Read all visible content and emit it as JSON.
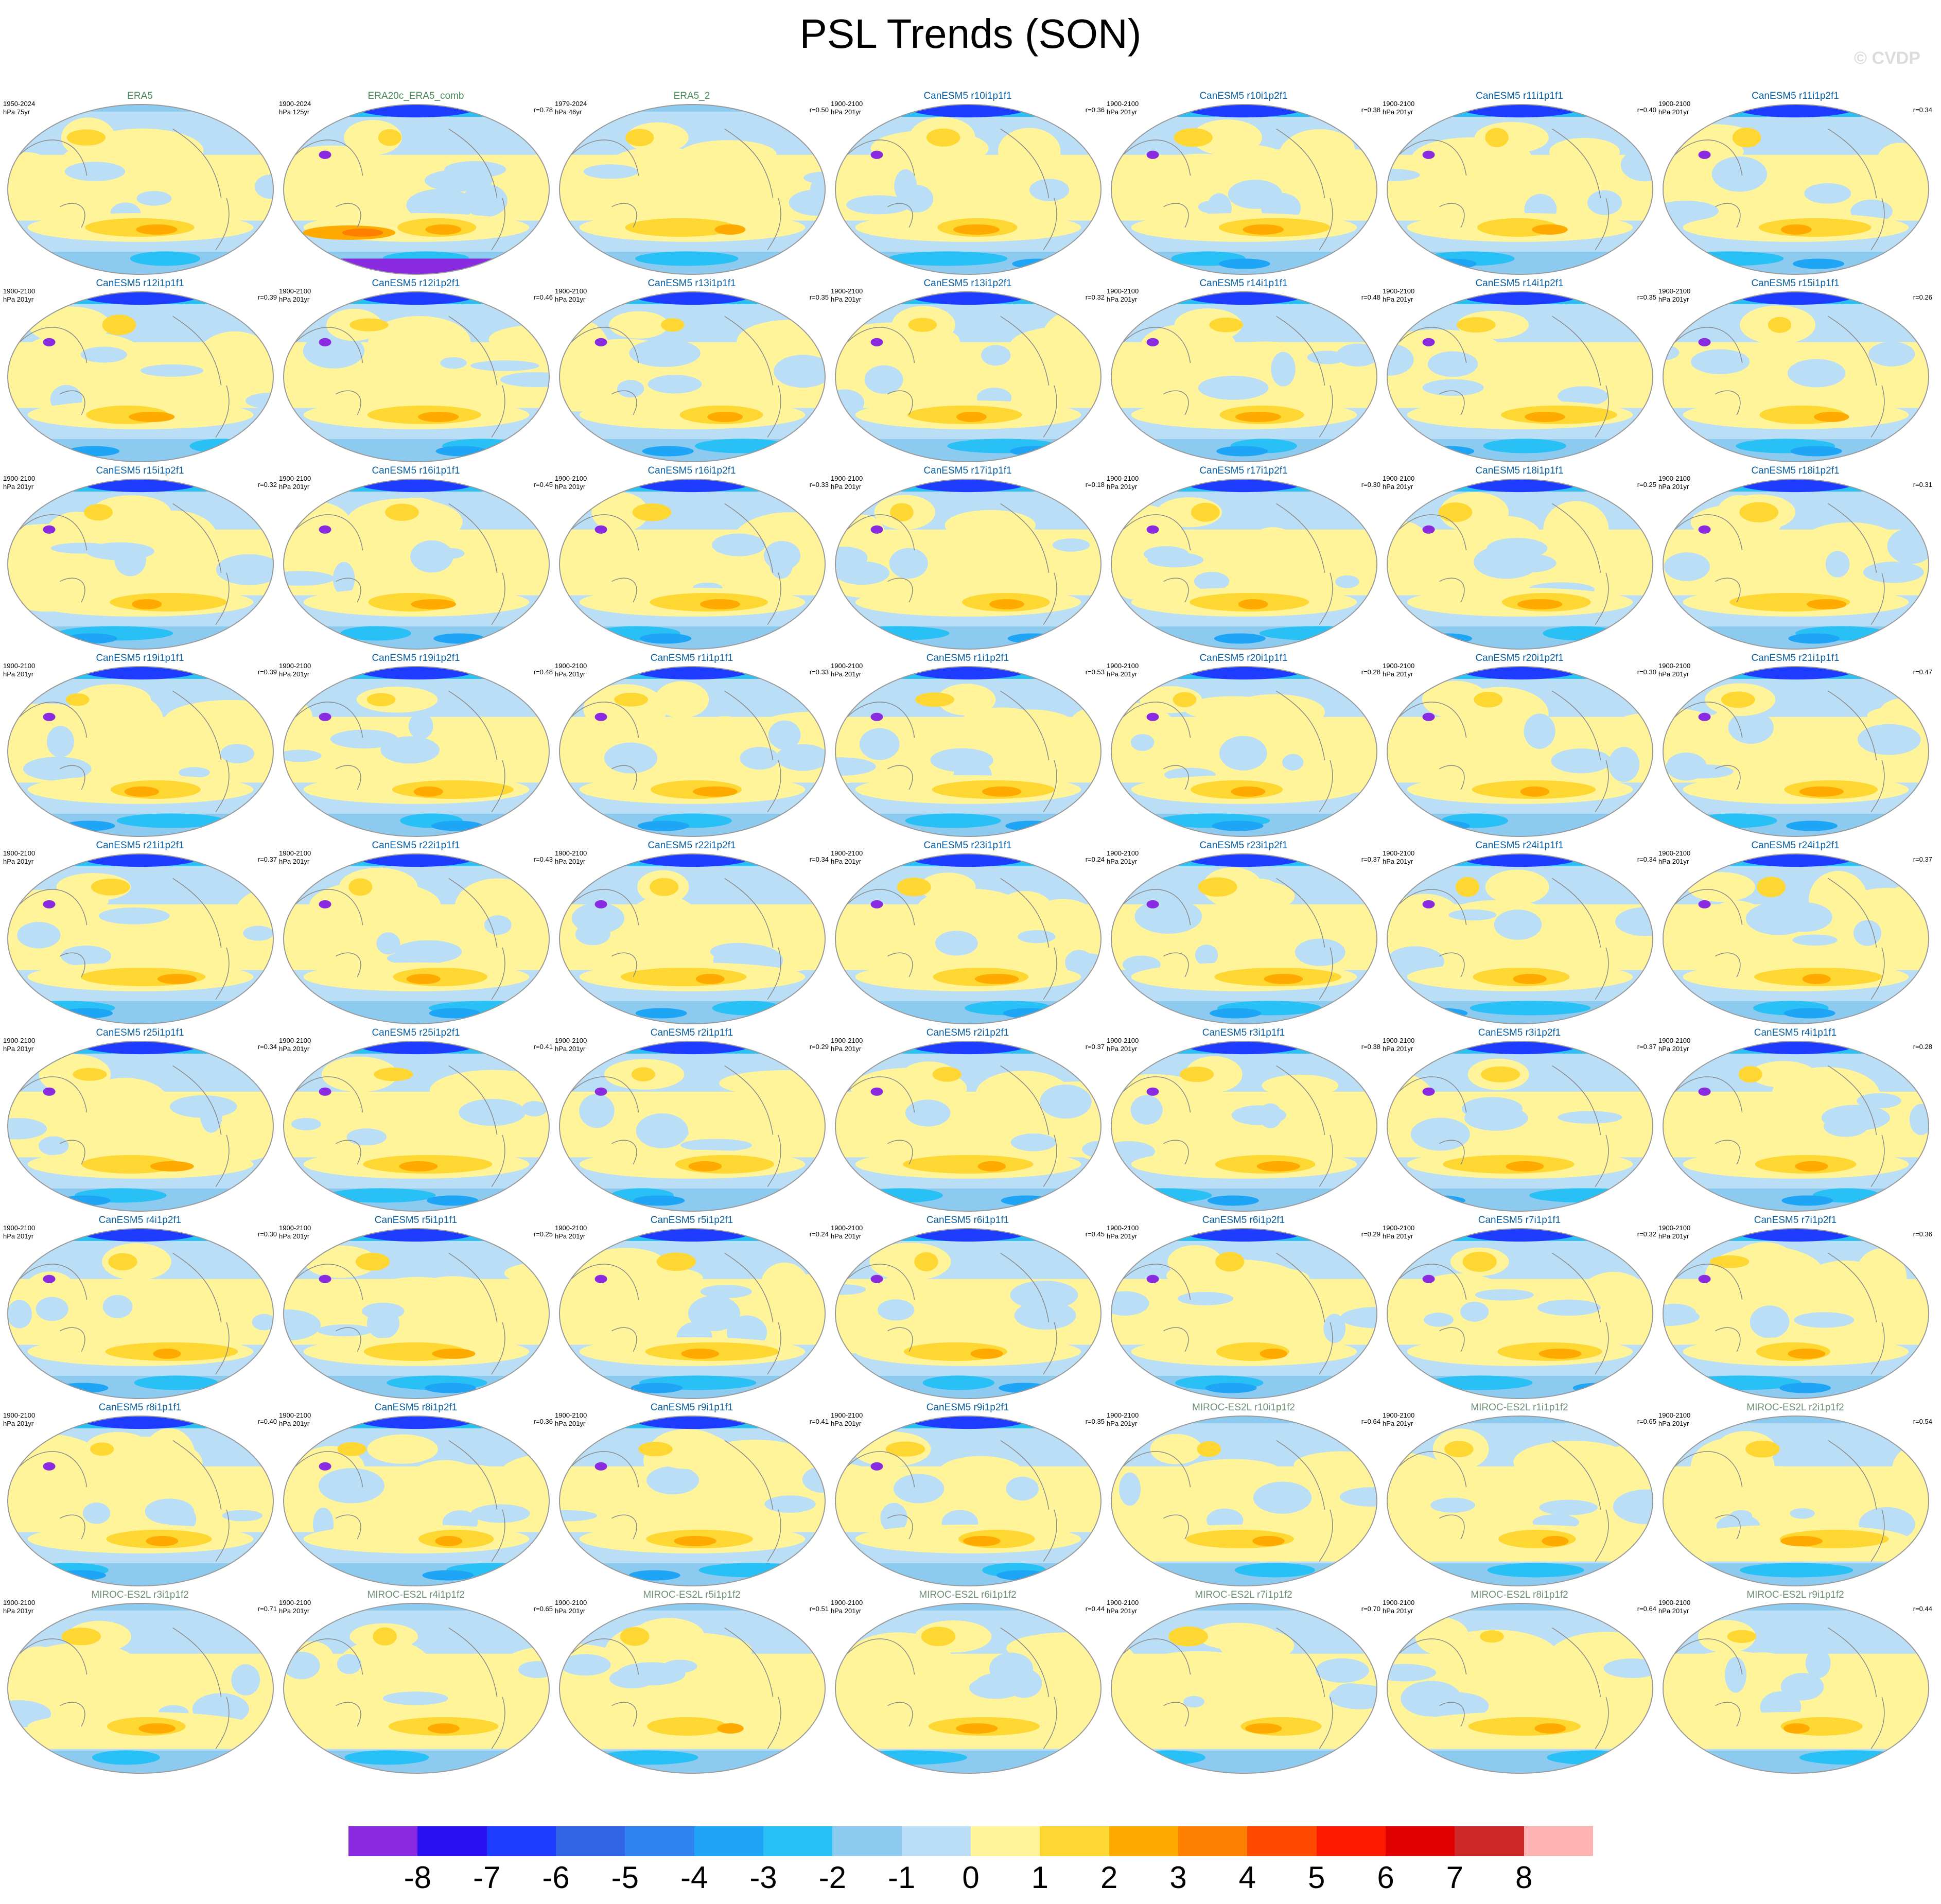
{
  "title": "PSL Trends (SON)",
  "watermark": "© CVDP",
  "colors": {
    "land_outline": "#8a8a8a",
    "map_border": "#9a9a9a"
  },
  "chart_data": {
    "type": "heatmap",
    "description_fields": [
      "name",
      "period",
      "units",
      "r"
    ],
    "panels": [
      {
        "name": "ERA5",
        "period": "1950-2024",
        "units": "hPa 75yr",
        "r": "",
        "group": "obs"
      },
      {
        "name": "ERA20c_ERA5_comb",
        "period": "1900-2024",
        "units": "hPa 125yr",
        "r": "r=0.78",
        "group": "obs"
      },
      {
        "name": "ERA5_2",
        "period": "1979-2024",
        "units": "hPa 46yr",
        "r": "r=0.50",
        "group": "obs"
      },
      {
        "name": "CanESM5 r10i1p1f1",
        "period": "1900-2100",
        "units": "hPa 201yr",
        "r": "r=0.36",
        "group": "can"
      },
      {
        "name": "CanESM5 r10i1p2f1",
        "period": "1900-2100",
        "units": "hPa 201yr",
        "r": "r=0.38",
        "group": "can"
      },
      {
        "name": "CanESM5 r11i1p1f1",
        "period": "1900-2100",
        "units": "hPa 201yr",
        "r": "r=0.40",
        "group": "can"
      },
      {
        "name": "CanESM5 r11i1p2f1",
        "period": "1900-2100",
        "units": "hPa 201yr",
        "r": "r=0.34",
        "group": "can"
      },
      {
        "name": "CanESM5 r12i1p1f1",
        "period": "1900-2100",
        "units": "hPa 201yr",
        "r": "r=0.39",
        "group": "can"
      },
      {
        "name": "CanESM5 r12i1p2f1",
        "period": "1900-2100",
        "units": "hPa 201yr",
        "r": "r=0.46",
        "group": "can"
      },
      {
        "name": "CanESM5 r13i1p1f1",
        "period": "1900-2100",
        "units": "hPa 201yr",
        "r": "r=0.35",
        "group": "can"
      },
      {
        "name": "CanESM5 r13i1p2f1",
        "period": "1900-2100",
        "units": "hPa 201yr",
        "r": "r=0.32",
        "group": "can"
      },
      {
        "name": "CanESM5 r14i1p1f1",
        "period": "1900-2100",
        "units": "hPa 201yr",
        "r": "r=0.48",
        "group": "can"
      },
      {
        "name": "CanESM5 r14i1p2f1",
        "period": "1900-2100",
        "units": "hPa 201yr",
        "r": "r=0.35",
        "group": "can"
      },
      {
        "name": "CanESM5 r15i1p1f1",
        "period": "1900-2100",
        "units": "hPa 201yr",
        "r": "r=0.26",
        "group": "can"
      },
      {
        "name": "CanESM5 r15i1p2f1",
        "period": "1900-2100",
        "units": "hPa 201yr",
        "r": "r=0.32",
        "group": "can"
      },
      {
        "name": "CanESM5 r16i1p1f1",
        "period": "1900-2100",
        "units": "hPa 201yr",
        "r": "r=0.45",
        "group": "can"
      },
      {
        "name": "CanESM5 r16i1p2f1",
        "period": "1900-2100",
        "units": "hPa 201yr",
        "r": "r=0.33",
        "group": "can"
      },
      {
        "name": "CanESM5 r17i1p1f1",
        "period": "1900-2100",
        "units": "hPa 201yr",
        "r": "r=0.18",
        "group": "can"
      },
      {
        "name": "CanESM5 r17i1p2f1",
        "period": "1900-2100",
        "units": "hPa 201yr",
        "r": "r=0.30",
        "group": "can"
      },
      {
        "name": "CanESM5 r18i1p1f1",
        "period": "1900-2100",
        "units": "hPa 201yr",
        "r": "r=0.25",
        "group": "can"
      },
      {
        "name": "CanESM5 r18i1p2f1",
        "period": "1900-2100",
        "units": "hPa 201yr",
        "r": "r=0.31",
        "group": "can"
      },
      {
        "name": "CanESM5 r19i1p1f1",
        "period": "1900-2100",
        "units": "hPa 201yr",
        "r": "r=0.39",
        "group": "can"
      },
      {
        "name": "CanESM5 r19i1p2f1",
        "period": "1900-2100",
        "units": "hPa 201yr",
        "r": "r=0.48",
        "group": "can"
      },
      {
        "name": "CanESM5 r1i1p1f1",
        "period": "1900-2100",
        "units": "hPa 201yr",
        "r": "r=0.33",
        "group": "can"
      },
      {
        "name": "CanESM5 r1i1p2f1",
        "period": "1900-2100",
        "units": "hPa 201yr",
        "r": "r=0.53",
        "group": "can"
      },
      {
        "name": "CanESM5 r20i1p1f1",
        "period": "1900-2100",
        "units": "hPa 201yr",
        "r": "r=0.28",
        "group": "can"
      },
      {
        "name": "CanESM5 r20i1p2f1",
        "period": "1900-2100",
        "units": "hPa 201yr",
        "r": "r=0.30",
        "group": "can"
      },
      {
        "name": "CanESM5 r21i1p1f1",
        "period": "1900-2100",
        "units": "hPa 201yr",
        "r": "r=0.47",
        "group": "can"
      },
      {
        "name": "CanESM5 r21i1p2f1",
        "period": "1900-2100",
        "units": "hPa 201yr",
        "r": "r=0.37",
        "group": "can"
      },
      {
        "name": "CanESM5 r22i1p1f1",
        "period": "1900-2100",
        "units": "hPa 201yr",
        "r": "r=0.43",
        "group": "can"
      },
      {
        "name": "CanESM5 r22i1p2f1",
        "period": "1900-2100",
        "units": "hPa 201yr",
        "r": "r=0.34",
        "group": "can"
      },
      {
        "name": "CanESM5 r23i1p1f1",
        "period": "1900-2100",
        "units": "hPa 201yr",
        "r": "r=0.24",
        "group": "can"
      },
      {
        "name": "CanESM5 r23i1p2f1",
        "period": "1900-2100",
        "units": "hPa 201yr",
        "r": "r=0.37",
        "group": "can"
      },
      {
        "name": "CanESM5 r24i1p1f1",
        "period": "1900-2100",
        "units": "hPa 201yr",
        "r": "r=0.34",
        "group": "can"
      },
      {
        "name": "CanESM5 r24i1p2f1",
        "period": "1900-2100",
        "units": "hPa 201yr",
        "r": "r=0.37",
        "group": "can"
      },
      {
        "name": "CanESM5 r25i1p1f1",
        "period": "1900-2100",
        "units": "hPa 201yr",
        "r": "r=0.34",
        "group": "can"
      },
      {
        "name": "CanESM5 r25i1p2f1",
        "period": "1900-2100",
        "units": "hPa 201yr",
        "r": "r=0.41",
        "group": "can"
      },
      {
        "name": "CanESM5 r2i1p1f1",
        "period": "1900-2100",
        "units": "hPa 201yr",
        "r": "r=0.29",
        "group": "can"
      },
      {
        "name": "CanESM5 r2i1p2f1",
        "period": "1900-2100",
        "units": "hPa 201yr",
        "r": "r=0.37",
        "group": "can"
      },
      {
        "name": "CanESM5 r3i1p1f1",
        "period": "1900-2100",
        "units": "hPa 201yr",
        "r": "r=0.38",
        "group": "can"
      },
      {
        "name": "CanESM5 r3i1p2f1",
        "period": "1900-2100",
        "units": "hPa 201yr",
        "r": "r=0.37",
        "group": "can"
      },
      {
        "name": "CanESM5 r4i1p1f1",
        "period": "1900-2100",
        "units": "hPa 201yr",
        "r": "r=0.28",
        "group": "can"
      },
      {
        "name": "CanESM5 r4i1p2f1",
        "period": "1900-2100",
        "units": "hPa 201yr",
        "r": "r=0.30",
        "group": "can"
      },
      {
        "name": "CanESM5 r5i1p1f1",
        "period": "1900-2100",
        "units": "hPa 201yr",
        "r": "r=0.25",
        "group": "can"
      },
      {
        "name": "CanESM5 r5i1p2f1",
        "period": "1900-2100",
        "units": "hPa 201yr",
        "r": "r=0.24",
        "group": "can"
      },
      {
        "name": "CanESM5 r6i1p1f1",
        "period": "1900-2100",
        "units": "hPa 201yr",
        "r": "r=0.45",
        "group": "can"
      },
      {
        "name": "CanESM5 r6i1p2f1",
        "period": "1900-2100",
        "units": "hPa 201yr",
        "r": "r=0.29",
        "group": "can"
      },
      {
        "name": "CanESM5 r7i1p1f1",
        "period": "1900-2100",
        "units": "hPa 201yr",
        "r": "r=0.32",
        "group": "can"
      },
      {
        "name": "CanESM5 r7i1p2f1",
        "period": "1900-2100",
        "units": "hPa 201yr",
        "r": "r=0.36",
        "group": "can"
      },
      {
        "name": "CanESM5 r8i1p1f1",
        "period": "1900-2100",
        "units": "hPa 201yr",
        "r": "r=0.40",
        "group": "can"
      },
      {
        "name": "CanESM5 r8i1p2f1",
        "period": "1900-2100",
        "units": "hPa 201yr",
        "r": "r=0.36",
        "group": "can"
      },
      {
        "name": "CanESM5 r9i1p1f1",
        "period": "1900-2100",
        "units": "hPa 201yr",
        "r": "r=0.41",
        "group": "can"
      },
      {
        "name": "CanESM5 r9i1p2f1",
        "period": "1900-2100",
        "units": "hPa 201yr",
        "r": "r=0.35",
        "group": "can"
      },
      {
        "name": "MIROC-ES2L r10i1p1f2",
        "period": "1900-2100",
        "units": "hPa 201yr",
        "r": "r=0.64",
        "group": "miroc"
      },
      {
        "name": "MIROC-ES2L r1i1p1f2",
        "period": "1900-2100",
        "units": "hPa 201yr",
        "r": "r=0.65",
        "group": "miroc"
      },
      {
        "name": "MIROC-ES2L r2i1p1f2",
        "period": "1900-2100",
        "units": "hPa 201yr",
        "r": "r=0.54",
        "group": "miroc"
      },
      {
        "name": "MIROC-ES2L r3i1p1f2",
        "period": "1900-2100",
        "units": "hPa 201yr",
        "r": "r=0.71",
        "group": "miroc"
      },
      {
        "name": "MIROC-ES2L r4i1p1f2",
        "period": "1900-2100",
        "units": "hPa 201yr",
        "r": "r=0.65",
        "group": "miroc"
      },
      {
        "name": "MIROC-ES2L r5i1p1f2",
        "period": "1900-2100",
        "units": "hPa 201yr",
        "r": "r=0.51",
        "group": "miroc"
      },
      {
        "name": "MIROC-ES2L r6i1p1f2",
        "period": "1900-2100",
        "units": "hPa 201yr",
        "r": "r=0.44",
        "group": "miroc"
      },
      {
        "name": "MIROC-ES2L r7i1p1f2",
        "period": "1900-2100",
        "units": "hPa 201yr",
        "r": "r=0.70",
        "group": "miroc"
      },
      {
        "name": "MIROC-ES2L r8i1p1f2",
        "period": "1900-2100",
        "units": "hPa 201yr",
        "r": "r=0.64",
        "group": "miroc"
      },
      {
        "name": "MIROC-ES2L r9i1p1f2",
        "period": "1900-2100",
        "units": "hPa 201yr",
        "r": "r=0.44",
        "group": "miroc"
      }
    ],
    "colorbar": {
      "labels": [
        "-8",
        "-7",
        "-6",
        "-5",
        "-4",
        "-3",
        "-2",
        "-1",
        "0",
        "1",
        "2",
        "3",
        "4",
        "5",
        "6",
        "7",
        "8"
      ],
      "colors": [
        "#8a2be2",
        "#2a0ff0",
        "#1e3cff",
        "#3264e6",
        "#2f82f0",
        "#1ea5f5",
        "#28c0f5",
        "#8ccaf0",
        "#b9def5",
        "#fff49a",
        "#ffd733",
        "#ffaa00",
        "#ff8000",
        "#ff4a00",
        "#ff1a00",
        "#e00000",
        "#cc2828",
        "#ffb4b4"
      ]
    }
  }
}
